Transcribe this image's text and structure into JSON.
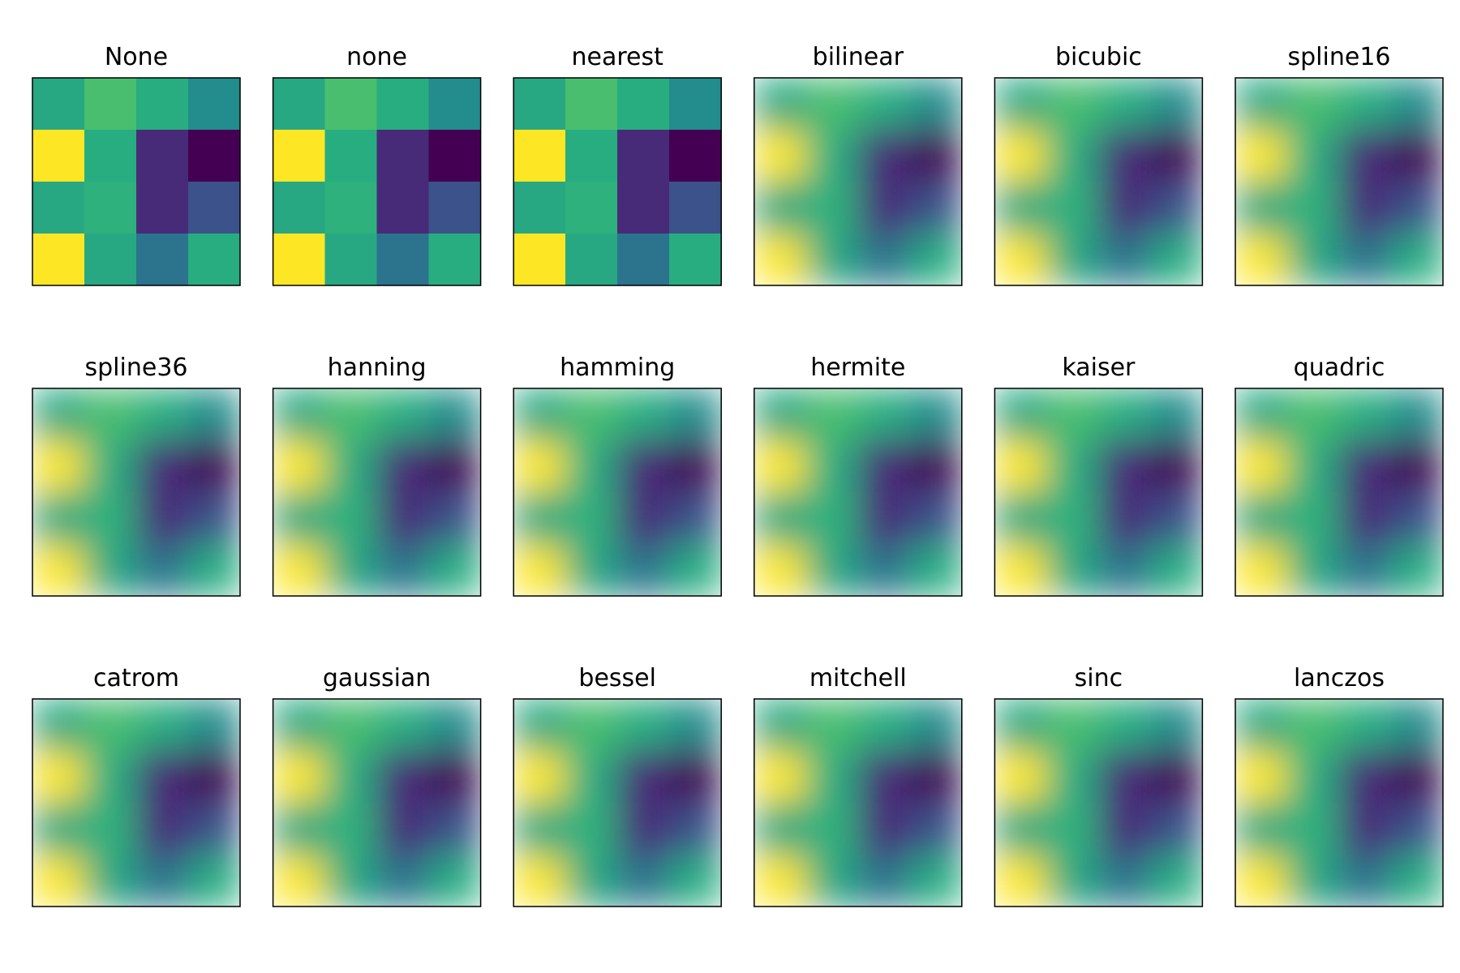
{
  "chart_data": [
    {
      "type": "heatmap",
      "title": "None",
      "colormap": "viridis",
      "smooth": false,
      "values": [
        [
          0.6,
          0.7,
          0.62,
          0.48
        ],
        [
          1.0,
          0.62,
          0.12,
          0.0
        ],
        [
          0.6,
          0.64,
          0.12,
          0.25
        ],
        [
          1.0,
          0.6,
          0.38,
          0.62
        ]
      ]
    },
    {
      "type": "heatmap",
      "title": "none",
      "colormap": "viridis",
      "smooth": false,
      "values": [
        [
          0.6,
          0.7,
          0.62,
          0.48
        ],
        [
          1.0,
          0.62,
          0.12,
          0.0
        ],
        [
          0.6,
          0.64,
          0.12,
          0.25
        ],
        [
          1.0,
          0.6,
          0.38,
          0.62
        ]
      ]
    },
    {
      "type": "heatmap",
      "title": "nearest",
      "colormap": "viridis",
      "smooth": false,
      "values": [
        [
          0.6,
          0.7,
          0.62,
          0.48
        ],
        [
          1.0,
          0.62,
          0.12,
          0.0
        ],
        [
          0.6,
          0.64,
          0.12,
          0.25
        ],
        [
          1.0,
          0.6,
          0.38,
          0.62
        ]
      ]
    },
    {
      "type": "heatmap",
      "title": "bilinear",
      "colormap": "viridis",
      "smooth": true,
      "values": [
        [
          0.6,
          0.7,
          0.62,
          0.48
        ],
        [
          1.0,
          0.62,
          0.12,
          0.0
        ],
        [
          0.6,
          0.64,
          0.12,
          0.25
        ],
        [
          1.0,
          0.6,
          0.38,
          0.62
        ]
      ]
    },
    {
      "type": "heatmap",
      "title": "bicubic",
      "colormap": "viridis",
      "smooth": true,
      "values": [
        [
          0.6,
          0.7,
          0.62,
          0.48
        ],
        [
          1.0,
          0.62,
          0.12,
          0.0
        ],
        [
          0.6,
          0.64,
          0.12,
          0.25
        ],
        [
          1.0,
          0.6,
          0.38,
          0.62
        ]
      ]
    },
    {
      "type": "heatmap",
      "title": "spline16",
      "colormap": "viridis",
      "smooth": true,
      "values": [
        [
          0.6,
          0.7,
          0.62,
          0.48
        ],
        [
          1.0,
          0.62,
          0.12,
          0.0
        ],
        [
          0.6,
          0.64,
          0.12,
          0.25
        ],
        [
          1.0,
          0.6,
          0.38,
          0.62
        ]
      ]
    },
    {
      "type": "heatmap",
      "title": "spline36",
      "colormap": "viridis",
      "smooth": true,
      "values": [
        [
          0.6,
          0.7,
          0.62,
          0.48
        ],
        [
          1.0,
          0.62,
          0.12,
          0.0
        ],
        [
          0.6,
          0.64,
          0.12,
          0.25
        ],
        [
          1.0,
          0.6,
          0.38,
          0.62
        ]
      ]
    },
    {
      "type": "heatmap",
      "title": "hanning",
      "colormap": "viridis",
      "smooth": true,
      "values": [
        [
          0.6,
          0.7,
          0.62,
          0.48
        ],
        [
          1.0,
          0.62,
          0.12,
          0.0
        ],
        [
          0.6,
          0.64,
          0.12,
          0.25
        ],
        [
          1.0,
          0.6,
          0.38,
          0.62
        ]
      ]
    },
    {
      "type": "heatmap",
      "title": "hamming",
      "colormap": "viridis",
      "smooth": true,
      "values": [
        [
          0.6,
          0.7,
          0.62,
          0.48
        ],
        [
          1.0,
          0.62,
          0.12,
          0.0
        ],
        [
          0.6,
          0.64,
          0.12,
          0.25
        ],
        [
          1.0,
          0.6,
          0.38,
          0.62
        ]
      ]
    },
    {
      "type": "heatmap",
      "title": "hermite",
      "colormap": "viridis",
      "smooth": true,
      "values": [
        [
          0.6,
          0.7,
          0.62,
          0.48
        ],
        [
          1.0,
          0.62,
          0.12,
          0.0
        ],
        [
          0.6,
          0.64,
          0.12,
          0.25
        ],
        [
          1.0,
          0.6,
          0.38,
          0.62
        ]
      ]
    },
    {
      "type": "heatmap",
      "title": "kaiser",
      "colormap": "viridis",
      "smooth": true,
      "values": [
        [
          0.6,
          0.7,
          0.62,
          0.48
        ],
        [
          1.0,
          0.62,
          0.12,
          0.0
        ],
        [
          0.6,
          0.64,
          0.12,
          0.25
        ],
        [
          1.0,
          0.6,
          0.38,
          0.62
        ]
      ]
    },
    {
      "type": "heatmap",
      "title": "quadric",
      "colormap": "viridis",
      "smooth": true,
      "values": [
        [
          0.6,
          0.7,
          0.62,
          0.48
        ],
        [
          1.0,
          0.62,
          0.12,
          0.0
        ],
        [
          0.6,
          0.64,
          0.12,
          0.25
        ],
        [
          1.0,
          0.6,
          0.38,
          0.62
        ]
      ]
    },
    {
      "type": "heatmap",
      "title": "catrom",
      "colormap": "viridis",
      "smooth": true,
      "values": [
        [
          0.6,
          0.7,
          0.62,
          0.48
        ],
        [
          1.0,
          0.62,
          0.12,
          0.0
        ],
        [
          0.6,
          0.64,
          0.12,
          0.25
        ],
        [
          1.0,
          0.6,
          0.38,
          0.62
        ]
      ]
    },
    {
      "type": "heatmap",
      "title": "gaussian",
      "colormap": "viridis",
      "smooth": true,
      "values": [
        [
          0.6,
          0.7,
          0.62,
          0.48
        ],
        [
          1.0,
          0.62,
          0.12,
          0.0
        ],
        [
          0.6,
          0.64,
          0.12,
          0.25
        ],
        [
          1.0,
          0.6,
          0.38,
          0.62
        ]
      ]
    },
    {
      "type": "heatmap",
      "title": "bessel",
      "colormap": "viridis",
      "smooth": true,
      "values": [
        [
          0.6,
          0.7,
          0.62,
          0.48
        ],
        [
          1.0,
          0.62,
          0.12,
          0.0
        ],
        [
          0.6,
          0.64,
          0.12,
          0.25
        ],
        [
          1.0,
          0.6,
          0.38,
          0.62
        ]
      ]
    },
    {
      "type": "heatmap",
      "title": "mitchell",
      "colormap": "viridis",
      "smooth": true,
      "values": [
        [
          0.6,
          0.7,
          0.62,
          0.48
        ],
        [
          1.0,
          0.62,
          0.12,
          0.0
        ],
        [
          0.6,
          0.64,
          0.12,
          0.25
        ],
        [
          1.0,
          0.6,
          0.38,
          0.62
        ]
      ]
    },
    {
      "type": "heatmap",
      "title": "sinc",
      "colormap": "viridis",
      "smooth": true,
      "values": [
        [
          0.6,
          0.7,
          0.62,
          0.48
        ],
        [
          1.0,
          0.62,
          0.12,
          0.0
        ],
        [
          0.6,
          0.64,
          0.12,
          0.25
        ],
        [
          1.0,
          0.6,
          0.38,
          0.62
        ]
      ]
    },
    {
      "type": "heatmap",
      "title": "lanczos",
      "colormap": "viridis",
      "smooth": true,
      "values": [
        [
          0.6,
          0.7,
          0.62,
          0.48
        ],
        [
          1.0,
          0.62,
          0.12,
          0.0
        ],
        [
          0.6,
          0.64,
          0.12,
          0.25
        ],
        [
          1.0,
          0.6,
          0.38,
          0.62
        ]
      ]
    }
  ]
}
